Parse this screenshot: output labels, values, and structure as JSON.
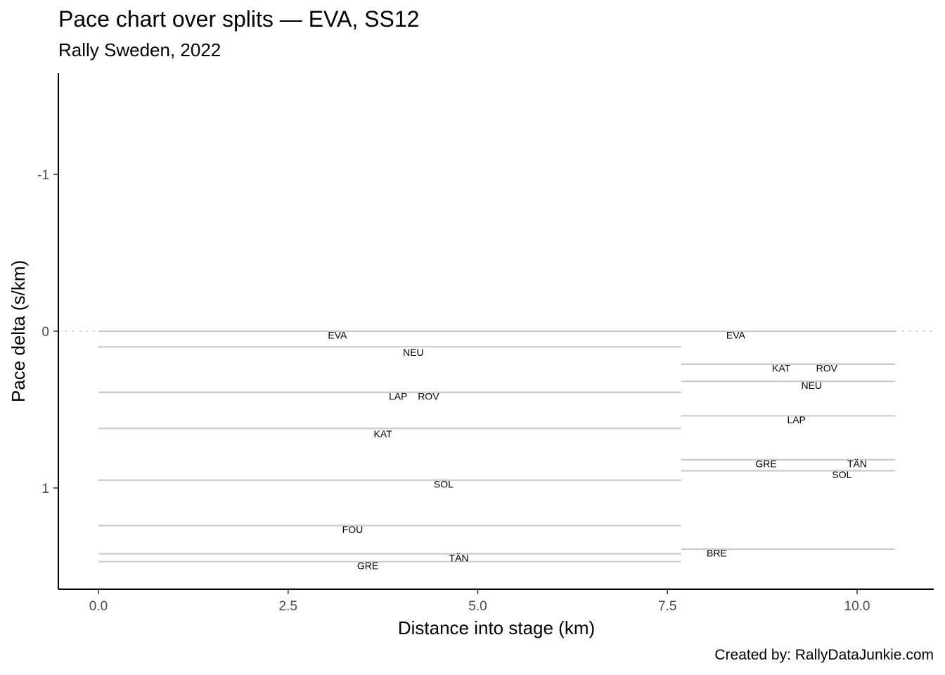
{
  "chart_data": {
    "type": "line",
    "title": "Pace chart over splits — EVA, SS12",
    "subtitle": "Rally Sweden, 2022",
    "xlabel": "Distance into stage (km)",
    "ylabel": "Pace delta (s/km)",
    "caption": "Created by: RallyDataJunkie.com",
    "xlim": [
      -0.25,
      10.5
    ],
    "ylim": [
      1.65,
      -1.65
    ],
    "y_reversed": true,
    "x_ticks": [
      0.0,
      2.5,
      5.0,
      7.5,
      10.0
    ],
    "x_tick_labels": [
      "0.0",
      "2.5",
      "5.0",
      "7.5",
      "10.0"
    ],
    "y_ticks": [
      -1,
      0,
      1
    ],
    "y_tick_labels": [
      "-1",
      "0",
      "1"
    ],
    "reference_line": {
      "y": 0,
      "style": "dotted"
    },
    "grid": false,
    "legend": "none",
    "colors": {
      "segment": "#cccccc",
      "axis": "#000000",
      "tick_text": "#4d4d4d",
      "reference": "#cccccc"
    },
    "splits": [
      {
        "x_start": 0.0,
        "x_end": 7.68,
        "series": [
          {
            "name": "EVA",
            "pace_delta": 0.0
          },
          {
            "name": "NEU",
            "pace_delta": 0.1
          },
          {
            "name": "ROV",
            "pace_delta": 0.39
          },
          {
            "name": "LAP",
            "pace_delta": 0.39
          },
          {
            "name": "KAT",
            "pace_delta": 0.62
          },
          {
            "name": "SOL",
            "pace_delta": 0.95
          },
          {
            "name": "FOU",
            "pace_delta": 1.24
          },
          {
            "name": "TÄN",
            "pace_delta": 1.42
          },
          {
            "name": "GRE",
            "pace_delta": 1.47
          }
        ]
      },
      {
        "x_start": 7.68,
        "x_end": 10.5,
        "series": [
          {
            "name": "EVA",
            "pace_delta": 0.0
          },
          {
            "name": "KAT",
            "pace_delta": 0.21
          },
          {
            "name": "ROV",
            "pace_delta": 0.21
          },
          {
            "name": "NEU",
            "pace_delta": 0.32
          },
          {
            "name": "LAP",
            "pace_delta": 0.54
          },
          {
            "name": "TÄN",
            "pace_delta": 0.82
          },
          {
            "name": "GRE",
            "pace_delta": 0.82
          },
          {
            "name": "SOL",
            "pace_delta": 0.89
          },
          {
            "name": "BRE",
            "pace_delta": 1.39
          }
        ]
      }
    ],
    "labels": [
      {
        "text": "EVA",
        "x": 3.15,
        "y": 0.03
      },
      {
        "text": "NEU",
        "x": 4.15,
        "y": 0.14
      },
      {
        "text": "LAP",
        "x": 3.95,
        "y": 0.42
      },
      {
        "text": "ROV",
        "x": 4.35,
        "y": 0.42
      },
      {
        "text": "KAT",
        "x": 3.75,
        "y": 0.66
      },
      {
        "text": "SOL",
        "x": 4.55,
        "y": 0.98
      },
      {
        "text": "FOU",
        "x": 3.35,
        "y": 1.27
      },
      {
        "text": "TÄN",
        "x": 4.75,
        "y": 1.45
      },
      {
        "text": "GRE",
        "x": 3.55,
        "y": 1.5
      },
      {
        "text": "EVA",
        "x": 8.4,
        "y": 0.03
      },
      {
        "text": "KAT",
        "x": 9.0,
        "y": 0.24
      },
      {
        "text": "ROV",
        "x": 9.6,
        "y": 0.24
      },
      {
        "text": "NEU",
        "x": 9.4,
        "y": 0.35
      },
      {
        "text": "LAP",
        "x": 9.2,
        "y": 0.57
      },
      {
        "text": "GRE",
        "x": 8.8,
        "y": 0.85
      },
      {
        "text": "TÄN",
        "x": 10.0,
        "y": 0.85
      },
      {
        "text": "SOL",
        "x": 9.8,
        "y": 0.92
      },
      {
        "text": "BRE",
        "x": 8.15,
        "y": 1.42
      }
    ]
  }
}
